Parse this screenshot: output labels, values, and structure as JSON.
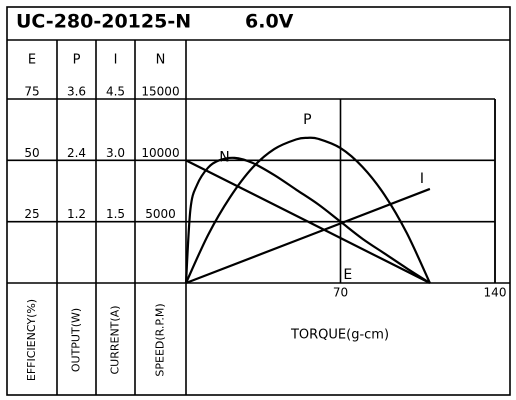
{
  "chart_data": {
    "type": "line",
    "title": "UC-280-20125-N",
    "subtitle": "6.0V",
    "xlabel": "TORQUE(g-cm)",
    "xlim": [
      0,
      140
    ],
    "xticks": [
      70,
      140
    ],
    "axes": [
      {
        "name": "E",
        "label": "EFFICIENCY(%)",
        "ylim": [
          0,
          75
        ],
        "yticks": [
          25,
          50,
          75
        ]
      },
      {
        "name": "P",
        "label": "OUTPUT(W)",
        "ylim": [
          0,
          3.6
        ],
        "yticks": [
          1.2,
          2.4,
          3.6
        ]
      },
      {
        "name": "I",
        "label": "CURRENT(A)",
        "ylim": [
          0,
          4.5
        ],
        "yticks": [
          1.5,
          {
            "value": 3,
            "label": "3.0"
          },
          4.5
        ]
      },
      {
        "name": "N",
        "label": "SPEED(R.P.M)",
        "ylim": [
          0,
          15000
        ],
        "yticks": [
          5000,
          10000,
          15000
        ]
      }
    ],
    "series": [
      {
        "name": "N",
        "axis": 3,
        "color": "#000000",
        "x": [
          0,
          110.5
        ],
        "values": [
          10000,
          0
        ]
      },
      {
        "name": "E",
        "axis": 0,
        "color": "#000000",
        "x": [
          0,
          2,
          5,
          10,
          15,
          22,
          30,
          40,
          50,
          60,
          70,
          80,
          90,
          100,
          110.5
        ],
        "values": [
          0,
          30,
          40,
          47,
          50,
          51,
          49,
          44,
          38,
          32,
          25,
          18,
          12,
          6,
          0
        ]
      },
      {
        "name": "P",
        "axis": 1,
        "color": "#000000",
        "x": [
          0,
          10,
          20,
          30,
          40,
          50,
          55,
          60,
          70,
          80,
          90,
          100,
          110.5
        ],
        "values": [
          0,
          0.94,
          1.68,
          2.25,
          2.62,
          2.81,
          2.84,
          2.82,
          2.64,
          2.27,
          1.72,
          0.98,
          0
        ]
      },
      {
        "name": "I",
        "axis": 2,
        "color": "#000000",
        "x": [
          0,
          110.5
        ],
        "values": [
          0,
          2.3
        ]
      }
    ],
    "grid": true
  }
}
